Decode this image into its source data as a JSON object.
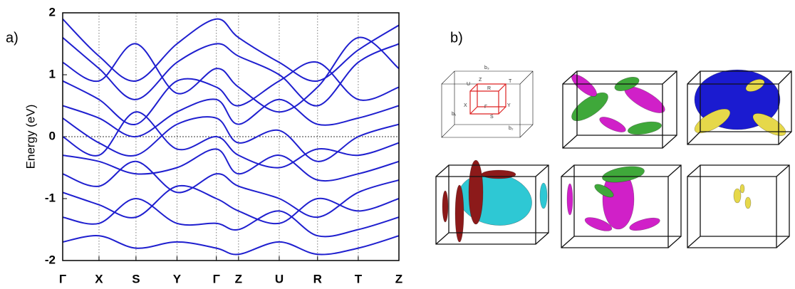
{
  "panel_labels": [
    "a)",
    "b)"
  ],
  "bz_labels": [
    "b₃",
    "U",
    "Z",
    "R",
    "T",
    "X",
    "Γ",
    "Y",
    "S",
    "b₁",
    "b₂"
  ],
  "chart_data": {
    "type": "line",
    "y_label": "Energy (eV)",
    "categories": [
      "Γ",
      "X",
      "S",
      "Y",
      "Γ",
      "Z",
      "U",
      "R",
      "T",
      "Z"
    ],
    "ylim": [
      -2,
      2
    ],
    "yticks": [
      -2,
      -1,
      0,
      1,
      2
    ],
    "grid": true,
    "zero_line": true,
    "series": [
      {
        "color": "#1f1fcf",
        "values": [
          1.9,
          1.3,
          0.9,
          1.5,
          1.9,
          1.6,
          1.2,
          0.9,
          1.4,
          1.8
        ]
      },
      {
        "color": "#1f1fcf",
        "values": [
          1.6,
          1.1,
          0.6,
          1.2,
          1.5,
          1.3,
          1.0,
          0.5,
          1.2,
          1.5
        ]
      },
      {
        "color": "#1f1fcf",
        "values": [
          1.2,
          0.9,
          1.5,
          0.7,
          1.1,
          0.8,
          0.4,
          0.8,
          1.6,
          1.1
        ]
      },
      {
        "color": "#1f1fcf",
        "values": [
          0.9,
          0.6,
          0.2,
          0.9,
          0.8,
          0.5,
          0.9,
          1.2,
          0.6,
          0.8
        ]
      },
      {
        "color": "#1f1fcf",
        "values": [
          0.5,
          0.3,
          0.0,
          0.4,
          0.6,
          0.2,
          0.6,
          0.2,
          0.3,
          0.5
        ]
      },
      {
        "color": "#1f1fcf",
        "values": [
          0.3,
          -0.1,
          -0.3,
          0.2,
          0.3,
          -0.1,
          0.1,
          -0.4,
          0.0,
          0.2
        ]
      },
      {
        "color": "#1f1fcf",
        "values": [
          0.0,
          -0.3,
          0.4,
          -0.2,
          0.0,
          -0.3,
          -0.5,
          -0.2,
          -0.3,
          -0.1
        ]
      },
      {
        "color": "#1f1fcf",
        "values": [
          -0.3,
          -0.4,
          -0.6,
          -0.5,
          -0.2,
          -0.6,
          -0.3,
          -0.7,
          -0.6,
          -0.4
        ]
      },
      {
        "color": "#1f1fcf",
        "values": [
          -0.6,
          -0.8,
          -0.4,
          -0.9,
          -0.6,
          -0.8,
          -1.0,
          -1.3,
          -0.9,
          -0.7
        ]
      },
      {
        "color": "#1f1fcf",
        "values": [
          -0.9,
          -1.1,
          -1.3,
          -0.8,
          -1.0,
          -1.2,
          -1.4,
          -1.0,
          -1.2,
          -1.0
        ]
      },
      {
        "color": "#1f1fcf",
        "values": [
          -1.3,
          -1.4,
          -1.0,
          -1.4,
          -1.4,
          -1.5,
          -1.2,
          -1.6,
          -1.5,
          -1.3
        ]
      },
      {
        "color": "#1f1fcf",
        "values": [
          -1.7,
          -1.6,
          -1.8,
          -1.7,
          -1.8,
          -1.9,
          -1.7,
          -1.9,
          -1.8,
          -1.6
        ]
      }
    ]
  }
}
